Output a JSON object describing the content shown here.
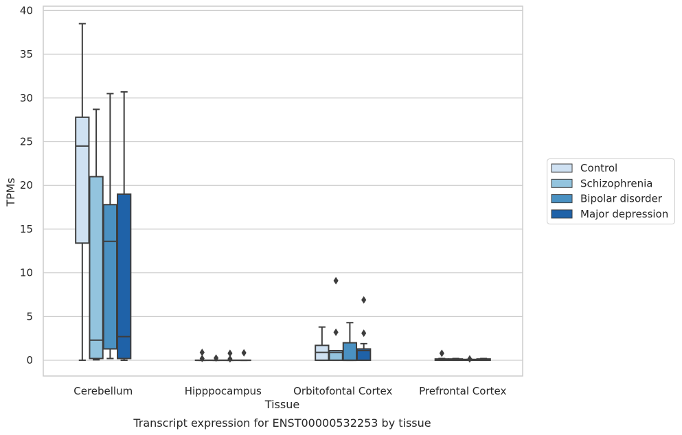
{
  "chart_data": {
    "type": "box",
    "caption": "Transcript expression for ENST00000532253 by tissue",
    "xlabel": "Tissue",
    "ylabel": "TPMs",
    "ylim": [
      -1.8,
      40.5
    ],
    "yticks": [
      0,
      5,
      10,
      15,
      20,
      25,
      30,
      35,
      40
    ],
    "grid": "horizontal",
    "legend_position": "right",
    "categories": [
      "Cerebellum",
      "Hipppocampus",
      "Orbitofontal Cortex",
      "Prefrontal Cortex"
    ],
    "series": [
      {
        "name": "Control",
        "color": "#cfe1f2",
        "boxes": [
          {
            "whislo": 0,
            "q1": 13.4,
            "med": 24.5,
            "q3": 27.8,
            "whishi": 38.5,
            "fliers": []
          },
          {
            "whislo": 0,
            "q1": 0,
            "med": 0,
            "q3": 0,
            "whishi": 0,
            "fliers": [
              0.2,
              0.9
            ]
          },
          {
            "whislo": 0,
            "q1": 0,
            "med": 0.9,
            "q3": 1.7,
            "whishi": 3.8,
            "fliers": []
          },
          {
            "whislo": 0,
            "q1": 0,
            "med": 0.05,
            "q3": 0.15,
            "whishi": 0.2,
            "fliers": [
              0.8
            ]
          }
        ]
      },
      {
        "name": "Schizophrenia",
        "color": "#93c4de",
        "boxes": [
          {
            "whislo": 0.05,
            "q1": 0.2,
            "med": 2.3,
            "q3": 21.0,
            "whishi": 28.7,
            "fliers": []
          },
          {
            "whislo": 0,
            "q1": 0,
            "med": 0,
            "q3": 0,
            "whishi": 0,
            "fliers": [
              0.25
            ]
          },
          {
            "whislo": 0,
            "q1": 0,
            "med": 0.9,
            "q3": 1.1,
            "whishi": 1.1,
            "fliers": [
              3.2,
              9.1
            ]
          },
          {
            "whislo": 0,
            "q1": 0,
            "med": 0.05,
            "q3": 0.15,
            "whishi": 0.2,
            "fliers": []
          }
        ]
      },
      {
        "name": "Bipolar disorder",
        "color": "#4a91c2",
        "boxes": [
          {
            "whislo": 0.2,
            "q1": 1.3,
            "med": 13.6,
            "q3": 17.8,
            "whishi": 30.5,
            "fliers": []
          },
          {
            "whislo": 0,
            "q1": 0,
            "med": 0,
            "q3": 0,
            "whishi": 0,
            "fliers": [
              0.15,
              0.8
            ]
          },
          {
            "whislo": 0,
            "q1": 0,
            "med": 0,
            "q3": 2.0,
            "whishi": 4.3,
            "fliers": []
          },
          {
            "whislo": 0,
            "q1": 0,
            "med": 0.05,
            "q3": 0.1,
            "whishi": 0.1,
            "fliers": [
              0.15
            ]
          }
        ]
      },
      {
        "name": "Major depression",
        "color": "#1f62a8",
        "boxes": [
          {
            "whislo": 0,
            "q1": 0.2,
            "med": 2.7,
            "q3": 19.0,
            "whishi": 30.7,
            "fliers": []
          },
          {
            "whislo": 0,
            "q1": 0,
            "med": 0,
            "q3": 0,
            "whishi": 0,
            "fliers": [
              0.85
            ]
          },
          {
            "whislo": 0,
            "q1": 0,
            "med": 1.1,
            "q3": 1.3,
            "whishi": 1.9,
            "fliers": [
              3.1,
              6.9
            ]
          },
          {
            "whislo": 0,
            "q1": 0,
            "med": 0.05,
            "q3": 0.15,
            "whishi": 0.2,
            "fliers": []
          }
        ]
      }
    ]
  }
}
